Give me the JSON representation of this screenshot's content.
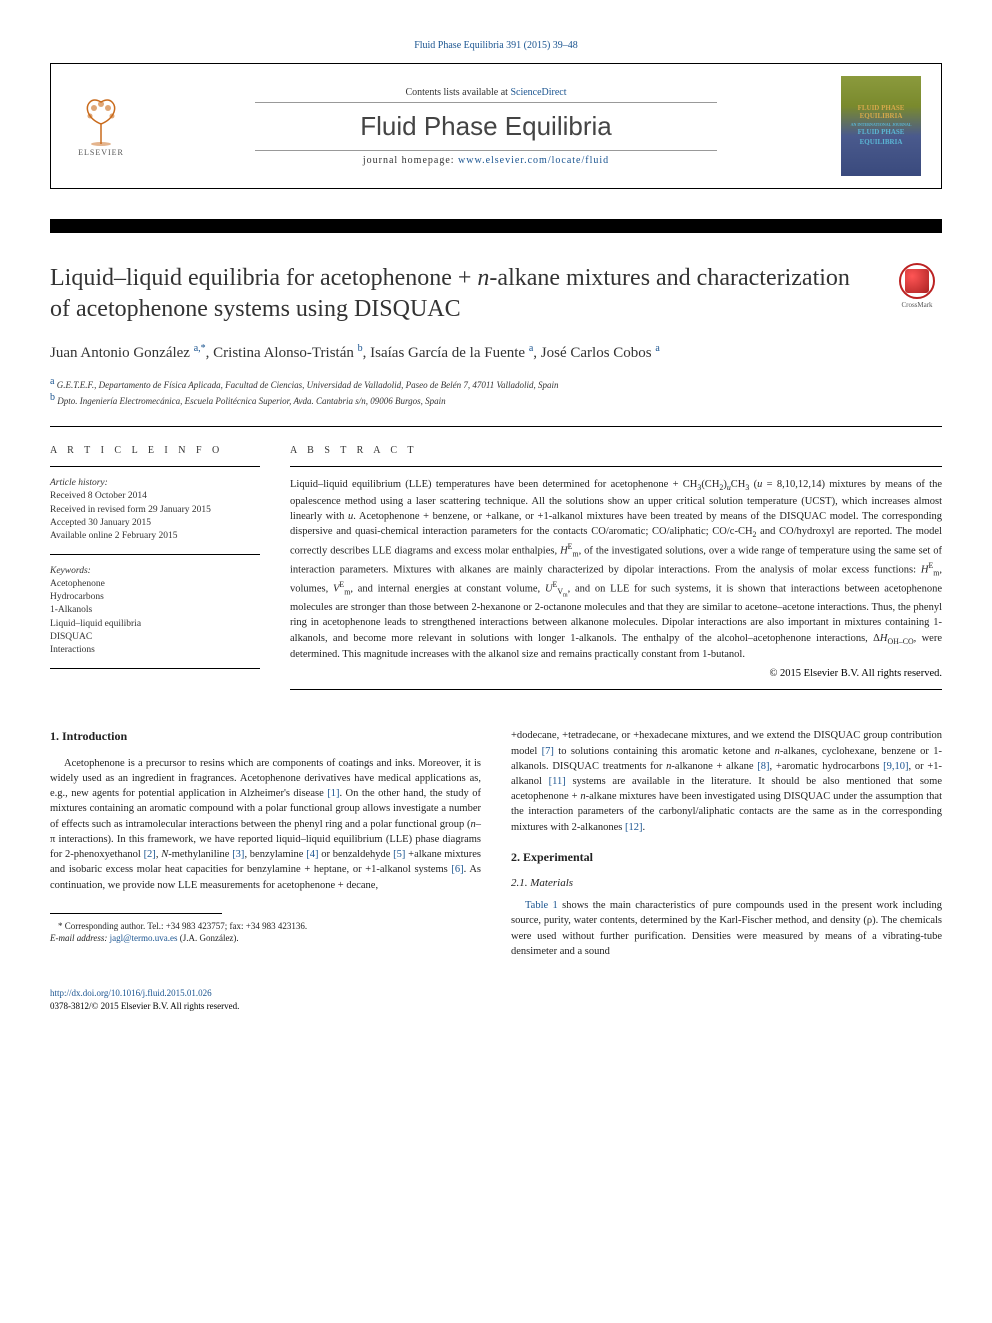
{
  "top_citation": "Fluid Phase Equilibria 391 (2015) 39–48",
  "header": {
    "contents_prefix": "Contents lists available at ",
    "contents_link": "ScienceDirect",
    "journal_name": "Fluid Phase Equilibria",
    "homepage_prefix": "journal homepage: ",
    "homepage_url": "www.elsevier.com/locate/fluid",
    "elsevier_label": "ELSEVIER",
    "cover_line1": "FLUID PHASE",
    "cover_line2": "EQUILIBRIA",
    "cover_line3": "AN INTERNATIONAL JOURNAL",
    "cover_line4": "FLUID PHASE",
    "cover_line5": "EQUILIBRIA"
  },
  "crossmark_label": "CrossMark",
  "title": "Liquid–liquid equilibria for acetophenone + n-alkane mixtures and characterization of acetophenone systems using DISQUAC",
  "authors_html": "Juan Antonio González <span class='sup'>a,*</span>, Cristina Alonso-Tristán <span class='sup'>b</span>, Isaías García de la Fuente <span class='sup'>a</span>, José Carlos Cobos <span class='sup'>a</span>",
  "affiliations": {
    "a": "G.E.T.E.F., Departamento de Física Aplicada, Facultad de Ciencias, Universidad de Valladolid, Paseo de Belén 7, 47011 Valladolid, Spain",
    "b": "Dpto. Ingeniería Electromecánica, Escuela Politécnica Superior, Avda. Cantabria s/n, 09006 Burgos, Spain"
  },
  "article_info": {
    "heading": "A R T I C L E   I N F O",
    "history_label": "Article history:",
    "received": "Received 8 October 2014",
    "revised": "Received in revised form 29 January 2015",
    "accepted": "Accepted 30 January 2015",
    "online": "Available online 2 February 2015",
    "keywords_label": "Keywords:",
    "keywords": [
      "Acetophenone",
      "Hydrocarbons",
      "1-Alkanols",
      "Liquid–liquid equilibria",
      "DISQUAC",
      "Interactions"
    ]
  },
  "abstract": {
    "heading": "A B S T R A C T",
    "text_html": "Liquid–liquid equilibrium (LLE) temperatures have been determined for acetophenone + CH<sub>3</sub>(CH<sub>2</sub>)<sub><em>u</em></sub>CH<sub>3</sub> (<em>u</em> = 8,10,12,14) mixtures by means of the opalescence method using a laser scattering technique. All the solutions show an upper critical solution temperature (UCST), which increases almost linearly with <em>u</em>. Acetophenone + benzene, or +alkane, or +1-alkanol mixtures have been treated by means of the DISQUAC model. The corresponding dispersive and quasi-chemical interaction parameters for the contacts CO/aromatic; CO/aliphatic; CO/c-CH<sub>2</sub> and CO/hydroxyl are reported. The model correctly describes LLE diagrams and excess molar enthalpies, <em>H</em><sup class='math'>E</sup><sub>m</sub>, of the investigated solutions, over a wide range of temperature using the same set of interaction parameters. Mixtures with alkanes are mainly characterized by dipolar interactions. From the analysis of molar excess functions: <em>H</em><sup class='math'>E</sup><sub>m</sub>, volumes, <em>V</em><sup class='math'>E</sup><sub>m</sub>, and internal energies at constant volume, <em>U</em><sup class='math'>E</sup><sub>V<sub>m</sub></sub>, and on LLE for such systems, it is shown that interactions between acetophenone molecules are stronger than those between 2-hexanone or 2-octanone molecules and that they are similar to acetone–acetone interactions. Thus, the phenyl ring in acetophenone leads to strengthened interactions between alkanone molecules. Dipolar interactions are also important in mixtures containing 1-alkanols, and become more relevant in solutions with longer 1-alkanols. The enthalpy of the alcohol–acetophenone interactions, Δ<em>H</em><sub>OH–CO</sub>, were determined. This magnitude increases with the alkanol size and remains practically constant from 1-butanol.",
    "copyright": "© 2015 Elsevier B.V. All rights reserved."
  },
  "body": {
    "intro_heading": "1. Introduction",
    "intro_p1_html": "Acetophenone is a precursor to resins which are components of coatings and inks. Moreover, it is widely used as an ingredient in fragrances. Acetophenone derivatives have medical applications as, e.g., new agents for potential application in Alzheimer's disease <a href='#'>[1]</a>. On the other hand, the study of mixtures containing an aromatic compound with a polar functional group allows investigate a number of effects such as intramolecular interactions between the phenyl ring and a polar functional group (<em>n</em>–π interactions). In this framework, we have reported liquid–liquid equilibrium (LLE) phase diagrams for 2-phenoxyethanol <a href='#'>[2]</a>, <em>N</em>-methylaniline <a href='#'>[3]</a>, benzylamine <a href='#'>[4]</a> or benzaldehyde <a href='#'>[5]</a> +alkane mixtures and isobaric excess molar heat capacities for benzylamine + heptane, or +1-alkanol systems <a href='#'>[6]</a>. As continuation, we provide now LLE measurements for acetophenone + decane,",
    "intro_p2_html": "+dodecane, +tetradecane, or +hexadecane mixtures, and we extend the DISQUAC group contribution model <a href='#'>[7]</a> to solutions containing this aromatic ketone and <em>n</em>-alkanes, cyclohexane, benzene or 1-alkanols. DISQUAC treatments for <em>n</em>-alkanone + alkane <a href='#'>[8]</a>, +aromatic hydrocarbons <a href='#'>[9,10]</a>, or +1-alkanol <a href='#'>[11]</a> systems are available in the literature. It should be also mentioned that some acetophenone + <em>n</em>-alkane mixtures have been investigated using DISQUAC under the assumption that the interaction parameters of the carbonyl/aliphatic contacts are the same as in the corresponding mixtures with 2-alkanones <a href='#'>[12]</a>.",
    "exp_heading": "2. Experimental",
    "materials_heading": "2.1. Materials",
    "materials_p_html": "<a href='#'>Table 1</a> shows the main characteristics of pure compounds used in the present work including source, purity, water contents, determined by the Karl-Fischer method, and density (ρ). The chemicals were used without further purification. Densities were measured by means of a vibrating-tube densimeter and a sound"
  },
  "footnote": {
    "corr": "* Corresponding author. Tel.: +34 983 423757; fax: +34 983 423136.",
    "email_label": "E-mail address: ",
    "email": "jagl@termo.uva.es",
    "email_suffix": " (J.A. González)."
  },
  "footer": {
    "doi": "http://dx.doi.org/10.1016/j.fluid.2015.01.026",
    "issn": "0378-3812/© 2015 Elsevier B.V. All rights reserved."
  },
  "colors": {
    "link": "#1a5490",
    "text": "#222"
  }
}
